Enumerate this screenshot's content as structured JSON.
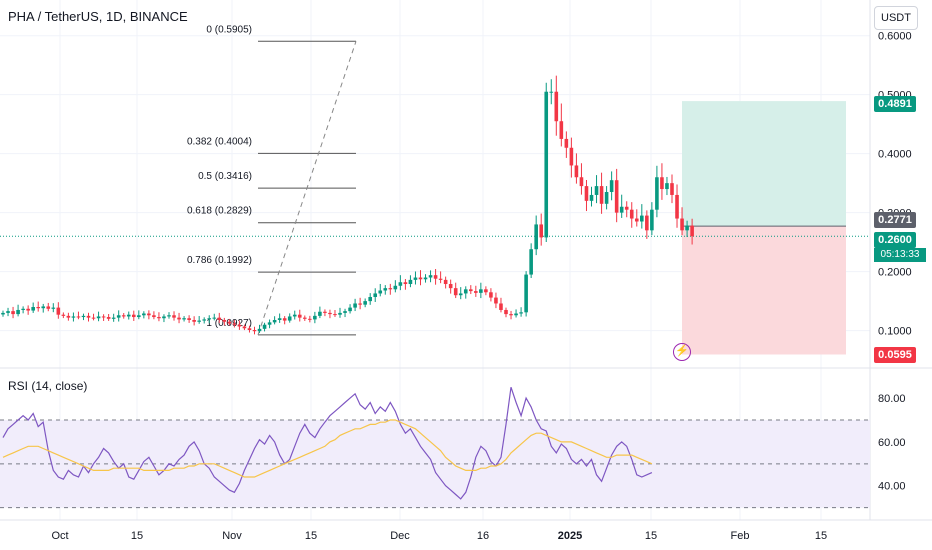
{
  "header": {
    "title": "PHA / TetherUS, 1D, BINANCE",
    "currency_button": "USDT"
  },
  "rsi_panel": {
    "title": "RSI (14, close)"
  },
  "price_tags": {
    "target": "0.4891",
    "entry": "0.2771",
    "last": "0.2600",
    "countdown": "05:13:33",
    "stop": "0.0595"
  },
  "colors": {
    "up": "#089981",
    "down": "#f23645",
    "rsi_line": "#7e57c2",
    "rsi_ma": "#f7c54a",
    "profit_zone": "#d6efe9",
    "loss_zone": "#fbd9dc",
    "rsi_band": "#f1edfb",
    "last_price_line": "#089981"
  },
  "chart_data": [
    {
      "type": "candlestick",
      "symbol": "PHA / TetherUS",
      "interval": "1D",
      "exchange": "BINANCE",
      "y_axis": {
        "ticks": [
          "0.6000",
          "0.5000",
          "0.4000",
          "0.3000",
          "0.2000",
          "0.1000"
        ],
        "ylim": [
          0.04,
          0.63
        ]
      },
      "x_axis": {
        "ticks": [
          "Oct",
          "15",
          "Nov",
          "15",
          "Dec",
          "16",
          "2025",
          "15",
          "Feb",
          "15"
        ]
      },
      "close_series": [
        0.13,
        0.133,
        0.128,
        0.135,
        0.137,
        0.134,
        0.14,
        0.138,
        0.141,
        0.137,
        0.139,
        0.127,
        0.125,
        0.122,
        0.124,
        0.123,
        0.125,
        0.122,
        0.121,
        0.124,
        0.123,
        0.12,
        0.122,
        0.126,
        0.124,
        0.127,
        0.123,
        0.126,
        0.129,
        0.126,
        0.123,
        0.121,
        0.124,
        0.126,
        0.122,
        0.119,
        0.121,
        0.118,
        0.115,
        0.117,
        0.119,
        0.121,
        0.122,
        0.118,
        0.115,
        0.112,
        0.11,
        0.107,
        0.104,
        0.101,
        0.099,
        0.103,
        0.11,
        0.114,
        0.118,
        0.121,
        0.117,
        0.124,
        0.127,
        0.122,
        0.12,
        0.119,
        0.125,
        0.132,
        0.13,
        0.128,
        0.127,
        0.13,
        0.133,
        0.139,
        0.146,
        0.144,
        0.15,
        0.157,
        0.163,
        0.168,
        0.172,
        0.17,
        0.176,
        0.182,
        0.179,
        0.186,
        0.19,
        0.187,
        0.19,
        0.194,
        0.188,
        0.186,
        0.179,
        0.172,
        0.16,
        0.163,
        0.17,
        0.167,
        0.164,
        0.17,
        0.165,
        0.156,
        0.146,
        0.135,
        0.128,
        0.126,
        0.129,
        0.131,
        0.195,
        0.238,
        0.28,
        0.258,
        0.505,
        0.505,
        0.455,
        0.425,
        0.41,
        0.38,
        0.36,
        0.345,
        0.32,
        0.33,
        0.345,
        0.315,
        0.335,
        0.355,
        0.3,
        0.31,
        0.305,
        0.29,
        0.285,
        0.295,
        0.27,
        0.305,
        0.36,
        0.34,
        0.35,
        0.33,
        0.29,
        0.27,
        0.278,
        0.26
      ],
      "rsi": {
        "levels": {
          "upper": 70,
          "middle": 50,
          "lower": 30
        },
        "axis_ticks": [
          "80.00",
          "60.00",
          "40.00"
        ],
        "ylim": [
          28,
          86
        ],
        "rsi_series": [
          62,
          66,
          68,
          70,
          72,
          70,
          73,
          67,
          69,
          56,
          47,
          44,
          43,
          47,
          45,
          44,
          49,
          46,
          50,
          53,
          57,
          55,
          51,
          48,
          50,
          44,
          43,
          47,
          51,
          53,
          49,
          45,
          47,
          50,
          49,
          52,
          54,
          58,
          60,
          56,
          50,
          48,
          44,
          42,
          40,
          38,
          37,
          41,
          47,
          52,
          57,
          61,
          59,
          63,
          60,
          54,
          50,
          52,
          58,
          64,
          68,
          64,
          62,
          66,
          69,
          72,
          74,
          76,
          78,
          80,
          82,
          77,
          75,
          78,
          73,
          76,
          74,
          78,
          74,
          68,
          64,
          66,
          62,
          58,
          55,
          52,
          46,
          43,
          40,
          38,
          36,
          34,
          37,
          44,
          53,
          58,
          56,
          51,
          49,
          53,
          68,
          85,
          78,
          72,
          80,
          76,
          70,
          66,
          65,
          58,
          55,
          59,
          57,
          52,
          50,
          52,
          49,
          52,
          45,
          42,
          48,
          54,
          58,
          60,
          58,
          52,
          45,
          44,
          45,
          46
        ],
        "ma_series": [
          53,
          54,
          55,
          56,
          57,
          58,
          58,
          58,
          57,
          56,
          55,
          54,
          53,
          52,
          51,
          50,
          49,
          48,
          47,
          47,
          47,
          47,
          48,
          48,
          48,
          48,
          48,
          48,
          47,
          47,
          47,
          47,
          47,
          47,
          48,
          48,
          48,
          49,
          49,
          50,
          50,
          50,
          50,
          49,
          48,
          47,
          46,
          45,
          44,
          44,
          44,
          45,
          46,
          47,
          48,
          49,
          50,
          51,
          52,
          53,
          54,
          55,
          56,
          57,
          58,
          60,
          61,
          63,
          64,
          65,
          66,
          66,
          67,
          68,
          68,
          69,
          69,
          70,
          70,
          69,
          68,
          67,
          66,
          64,
          62,
          60,
          58,
          56,
          53,
          51,
          49,
          48,
          47,
          47,
          47,
          48,
          48,
          49,
          49,
          50,
          52,
          55,
          57,
          59,
          61,
          63,
          64,
          64,
          63,
          62,
          61,
          60,
          60,
          60,
          59,
          58,
          57,
          56,
          55,
          54,
          53,
          53,
          54,
          54,
          54,
          54,
          53,
          52,
          51,
          50
        ]
      }
    }
  ],
  "fibonacci": {
    "labels": [
      "0 (0.5905)",
      "0.382 (0.4004)",
      "0.5 (0.3416)",
      "0.618 (0.2829)",
      "0.786 (0.1992)",
      "1 (0.0927)"
    ],
    "prices": [
      0.5905,
      0.4004,
      0.3416,
      0.2829,
      0.1992,
      0.0927
    ]
  },
  "position": {
    "target": 0.4891,
    "entry": 0.2771,
    "stop": 0.0595,
    "last": 0.26
  }
}
